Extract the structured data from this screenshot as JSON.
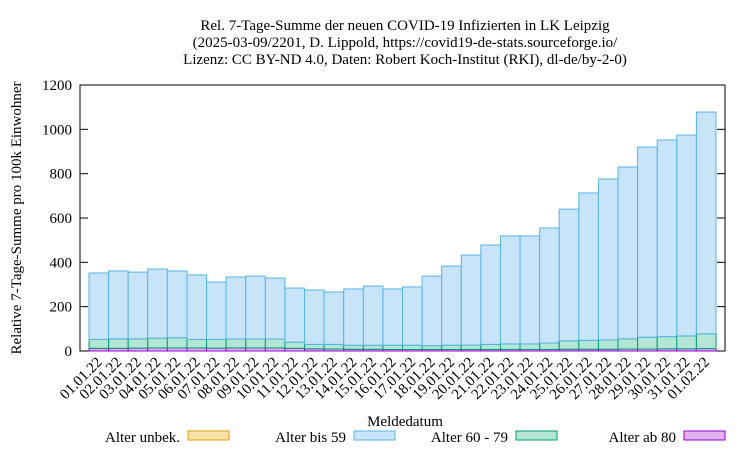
{
  "chart_data": {
    "type": "stacked_bar",
    "title": "Rel. 7-Tage-Summe der neuen COVID-19 Infizierten in LK Leipzig",
    "subtitle": [
      "(2025-03-09/2201, D. Lippold, https://covid19-de-stats.sourceforge.io/",
      "Lizenz: CC BY-ND 4.0, Daten: Robert Koch-Institut (RKI), dl-de/by-2-0)"
    ],
    "x_label": "Meldedatum",
    "y_label": "Relative 7-Tage-Summe pro 100k Einwohner",
    "categories": [
      "01.01.22",
      "02.01.22",
      "03.01.22",
      "04.01.22",
      "05.01.22",
      "06.01.22",
      "07.01.22",
      "08.01.22",
      "09.01.22",
      "10.01.22",
      "11.01.22",
      "12.01.22",
      "13.01.22",
      "14.01.22",
      "15.01.22",
      "16.01.22",
      "17.01.22",
      "18.01.22",
      "19.01.22",
      "20.01.22",
      "21.01.22",
      "22.01.22",
      "23.01.22",
      "24.01.22",
      "25.01.22",
      "26.01.22",
      "27.01.22",
      "28.01.22",
      "29.01.22",
      "30.01.22",
      "31.01.22",
      "01.02.22"
    ],
    "series": [
      {
        "name": "Alter unbek.",
        "color": "#fbe0a8",
        "stroke": "#e69f00",
        "values": [
          0,
          0,
          0,
          0,
          0,
          0,
          0,
          0,
          0,
          0,
          0,
          0,
          0,
          0,
          0,
          0,
          0,
          0,
          0,
          0,
          0,
          0,
          0,
          0,
          0,
          0,
          0,
          0,
          0,
          0,
          0,
          0
        ]
      },
      {
        "name": "Alter bis 59",
        "color": "#c8e4f8",
        "stroke": "#56b4e9",
        "values": [
          300,
          306,
          301,
          312,
          301,
          291,
          259,
          280,
          284,
          275,
          244,
          245,
          236,
          254,
          267,
          254,
          263,
          314,
          357,
          406,
          448,
          487,
          487,
          519,
          594,
          665,
          726,
          775,
          858,
          887,
          906,
          1000
        ]
      },
      {
        "name": "Alter 60 - 79",
        "color": "#b3e6d4",
        "stroke": "#009e73",
        "values": [
          40,
          43,
          42,
          44,
          46,
          38,
          39,
          40,
          40,
          40,
          28,
          20,
          21,
          18,
          18,
          19,
          19,
          17,
          19,
          20,
          23,
          25,
          25,
          29,
          38,
          40,
          42,
          46,
          53,
          55,
          58,
          67
        ]
      },
      {
        "name": "Alter ab 80",
        "color": "#e0b0f0",
        "stroke": "#9400d3",
        "values": [
          12,
          12,
          13,
          14,
          14,
          14,
          13,
          14,
          14,
          14,
          12,
          10,
          9,
          8,
          8,
          7,
          7,
          7,
          7,
          7,
          7,
          7,
          7,
          7,
          8,
          8,
          8,
          9,
          9,
          10,
          10,
          11
        ]
      }
    ],
    "ylim": [
      0,
      1200
    ],
    "yticks": [
      0,
      200,
      400,
      600,
      800,
      1000,
      1200
    ],
    "grid": false
  }
}
